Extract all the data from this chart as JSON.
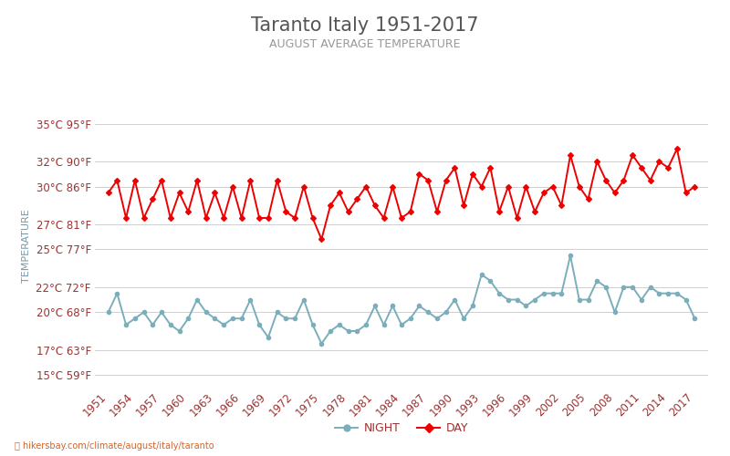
{
  "title": "Taranto Italy 1951-2017",
  "subtitle": "AUGUST AVERAGE TEMPERATURE",
  "ylabel": "TEMPERATURE",
  "xlabel_url": "hikersbay.com/climate/august/italy/taranto",
  "background_color": "#ffffff",
  "plot_bg_color": "#ffffff",
  "grid_color": "#d0d0d0",
  "years": [
    1951,
    1952,
    1953,
    1954,
    1955,
    1956,
    1957,
    1958,
    1959,
    1960,
    1961,
    1962,
    1963,
    1964,
    1965,
    1966,
    1967,
    1968,
    1969,
    1970,
    1971,
    1972,
    1973,
    1974,
    1975,
    1976,
    1977,
    1978,
    1979,
    1980,
    1981,
    1982,
    1983,
    1984,
    1985,
    1986,
    1987,
    1988,
    1989,
    1990,
    1991,
    1992,
    1993,
    1994,
    1995,
    1996,
    1997,
    1998,
    1999,
    2000,
    2001,
    2002,
    2003,
    2004,
    2005,
    2006,
    2007,
    2008,
    2009,
    2010,
    2011,
    2012,
    2013,
    2014,
    2015,
    2016,
    2017
  ],
  "day_temps": [
    29.5,
    30.5,
    27.5,
    30.5,
    27.5,
    29.0,
    30.5,
    27.5,
    29.5,
    28.0,
    30.5,
    27.5,
    29.5,
    27.5,
    30.0,
    27.5,
    30.5,
    27.5,
    27.5,
    30.5,
    28.0,
    27.5,
    30.0,
    27.5,
    25.8,
    28.5,
    29.5,
    28.0,
    29.0,
    30.0,
    28.5,
    27.5,
    30.0,
    27.5,
    28.0,
    31.0,
    30.5,
    28.0,
    30.5,
    31.5,
    28.5,
    31.0,
    30.0,
    31.5,
    28.0,
    30.0,
    27.5,
    30.0,
    28.0,
    29.5,
    30.0,
    28.5,
    32.5,
    30.0,
    29.0,
    32.0,
    30.5,
    29.5,
    30.5,
    32.5,
    31.5,
    30.5,
    32.0,
    31.5,
    33.0,
    29.5,
    30.0
  ],
  "night_temps": [
    20.0,
    21.5,
    19.0,
    19.5,
    20.0,
    19.0,
    20.0,
    19.0,
    18.5,
    19.5,
    21.0,
    20.0,
    19.5,
    19.0,
    19.5,
    19.5,
    21.0,
    19.0,
    18.0,
    20.0,
    19.5,
    19.5,
    21.0,
    19.0,
    17.5,
    18.5,
    19.0,
    18.5,
    18.5,
    19.0,
    20.5,
    19.0,
    20.5,
    19.0,
    19.5,
    20.5,
    20.0,
    19.5,
    20.0,
    21.0,
    19.5,
    20.5,
    23.0,
    22.5,
    21.5,
    21.0,
    21.0,
    20.5,
    21.0,
    21.5,
    21.5,
    21.5,
    24.5,
    21.0,
    21.0,
    22.5,
    22.0,
    20.0,
    22.0,
    22.0,
    21.0,
    22.0,
    21.5,
    21.5,
    21.5,
    21.0,
    19.5
  ],
  "yticks_c": [
    15,
    17,
    20,
    22,
    25,
    27,
    30,
    32,
    35
  ],
  "yticks_f": [
    59,
    63,
    68,
    72,
    77,
    81,
    86,
    90,
    95
  ],
  "xticks": [
    1951,
    1954,
    1957,
    1960,
    1963,
    1966,
    1969,
    1972,
    1975,
    1978,
    1981,
    1984,
    1987,
    1990,
    1993,
    1996,
    1999,
    2002,
    2005,
    2008,
    2011,
    2014,
    2017
  ],
  "ylim": [
    14.0,
    36.5
  ],
  "xlim": [
    1949.5,
    2018.5
  ],
  "day_color": "#ee0000",
  "night_color": "#7aaebb",
  "day_marker": "D",
  "night_marker": "o",
  "marker_size": 3,
  "line_width": 1.4,
  "title_fontsize": 15,
  "subtitle_fontsize": 9,
  "tick_fontsize": 8.5,
  "ylabel_fontsize": 8,
  "title_color": "#555555",
  "subtitle_color": "#999999",
  "tick_color": "#993333",
  "ylabel_color": "#7799aa",
  "url_symbol": "⌖",
  "url_color": "#cc6633"
}
